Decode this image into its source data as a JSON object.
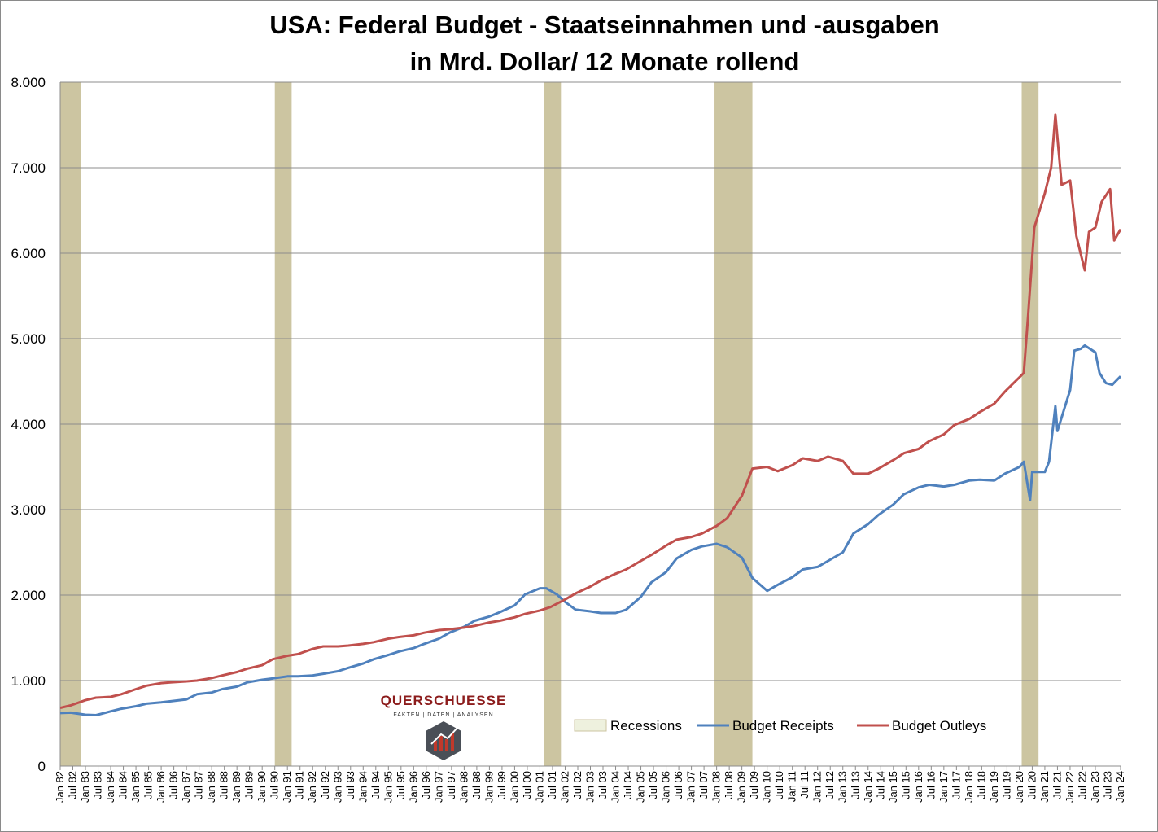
{
  "chart_data": {
    "type": "line",
    "title": "USA: Federal Budget - Staatseinnahmen und -ausgaben",
    "subtitle": "in Mrd. Dollar/ 12 Monate rollend",
    "xlabel": "",
    "ylabel": "",
    "ylim": [
      0,
      8000
    ],
    "xlim": [
      "1982-01",
      "2024-01"
    ],
    "grid": true,
    "legend_position": "bottom-right",
    "yticks": [
      {
        "value": 0,
        "label": "0"
      },
      {
        "value": 1000,
        "label": "1.000"
      },
      {
        "value": 2000,
        "label": "2.000"
      },
      {
        "value": 3000,
        "label": "3.000"
      },
      {
        "value": 4000,
        "label": "4.000"
      },
      {
        "value": 5000,
        "label": "5.000"
      },
      {
        "value": 6000,
        "label": "6.000"
      },
      {
        "value": 7000,
        "label": "7.000"
      },
      {
        "value": 8000,
        "label": "8.000"
      }
    ],
    "recessions": [
      {
        "start": "1982-01",
        "end": "1982-11"
      },
      {
        "start": "1990-07",
        "end": "1991-03"
      },
      {
        "start": "2001-03",
        "end": "2001-11"
      },
      {
        "start": "2007-12",
        "end": "2009-06"
      },
      {
        "start": "2020-02",
        "end": "2020-10"
      }
    ],
    "legend": [
      "Recessions",
      "Budget Receipts",
      "Budget Outleys"
    ],
    "series": [
      {
        "name": "Budget Receipts",
        "color": "#4f81bd",
        "points": [
          [
            "1982-01",
            620
          ],
          [
            "1982-06",
            625
          ],
          [
            "1983-01",
            600
          ],
          [
            "1983-06",
            595
          ],
          [
            "1984-01",
            640
          ],
          [
            "1984-06",
            670
          ],
          [
            "1985-01",
            700
          ],
          [
            "1985-06",
            730
          ],
          [
            "1986-01",
            745
          ],
          [
            "1986-06",
            760
          ],
          [
            "1987-01",
            780
          ],
          [
            "1987-06",
            840
          ],
          [
            "1988-01",
            860
          ],
          [
            "1988-06",
            900
          ],
          [
            "1989-01",
            930
          ],
          [
            "1989-06",
            980
          ],
          [
            "1990-01",
            1010
          ],
          [
            "1990-06",
            1025
          ],
          [
            "1991-01",
            1050
          ],
          [
            "1991-06",
            1050
          ],
          [
            "1992-01",
            1060
          ],
          [
            "1992-06",
            1080
          ],
          [
            "1993-01",
            1110
          ],
          [
            "1993-06",
            1150
          ],
          [
            "1994-01",
            1200
          ],
          [
            "1994-06",
            1250
          ],
          [
            "1995-01",
            1300
          ],
          [
            "1995-06",
            1340
          ],
          [
            "1996-01",
            1380
          ],
          [
            "1996-06",
            1430
          ],
          [
            "1997-01",
            1490
          ],
          [
            "1997-06",
            1560
          ],
          [
            "1998-01",
            1630
          ],
          [
            "1998-06",
            1700
          ],
          [
            "1999-01",
            1750
          ],
          [
            "1999-06",
            1800
          ],
          [
            "2000-01",
            1880
          ],
          [
            "2000-06",
            2010
          ],
          [
            "2001-01",
            2080
          ],
          [
            "2001-04",
            2080
          ],
          [
            "2001-09",
            2010
          ],
          [
            "2002-01",
            1920
          ],
          [
            "2002-06",
            1830
          ],
          [
            "2003-01",
            1810
          ],
          [
            "2003-06",
            1790
          ],
          [
            "2004-01",
            1790
          ],
          [
            "2004-06",
            1830
          ],
          [
            "2005-01",
            1980
          ],
          [
            "2005-06",
            2150
          ],
          [
            "2006-01",
            2270
          ],
          [
            "2006-06",
            2430
          ],
          [
            "2007-01",
            2530
          ],
          [
            "2007-06",
            2570
          ],
          [
            "2008-01",
            2600
          ],
          [
            "2008-06",
            2560
          ],
          [
            "2009-01",
            2440
          ],
          [
            "2009-06",
            2200
          ],
          [
            "2010-01",
            2050
          ],
          [
            "2010-06",
            2120
          ],
          [
            "2011-01",
            2210
          ],
          [
            "2011-06",
            2300
          ],
          [
            "2012-01",
            2330
          ],
          [
            "2012-06",
            2400
          ],
          [
            "2013-01",
            2500
          ],
          [
            "2013-06",
            2720
          ],
          [
            "2014-01",
            2830
          ],
          [
            "2014-06",
            2940
          ],
          [
            "2015-01",
            3060
          ],
          [
            "2015-06",
            3180
          ],
          [
            "2016-01",
            3260
          ],
          [
            "2016-06",
            3290
          ],
          [
            "2017-01",
            3270
          ],
          [
            "2017-06",
            3290
          ],
          [
            "2018-01",
            3340
          ],
          [
            "2018-06",
            3350
          ],
          [
            "2019-01",
            3340
          ],
          [
            "2019-06",
            3420
          ],
          [
            "2020-01",
            3500
          ],
          [
            "2020-03",
            3560
          ],
          [
            "2020-06",
            3110
          ],
          [
            "2020-07",
            3440
          ],
          [
            "2021-01",
            3440
          ],
          [
            "2021-03",
            3560
          ],
          [
            "2021-06",
            4210
          ],
          [
            "2021-07",
            3920
          ],
          [
            "2022-01",
            4400
          ],
          [
            "2022-03",
            4860
          ],
          [
            "2022-06",
            4880
          ],
          [
            "2022-08",
            4920
          ],
          [
            "2023-01",
            4840
          ],
          [
            "2023-03",
            4600
          ],
          [
            "2023-06",
            4480
          ],
          [
            "2023-09",
            4460
          ],
          [
            "2024-01",
            4560
          ]
        ]
      },
      {
        "name": "Budget Outleys",
        "color": "#c0504d",
        "points": [
          [
            "1982-01",
            680
          ],
          [
            "1982-06",
            710
          ],
          [
            "1983-01",
            770
          ],
          [
            "1983-06",
            800
          ],
          [
            "1984-01",
            810
          ],
          [
            "1984-06",
            840
          ],
          [
            "1985-01",
            900
          ],
          [
            "1985-06",
            940
          ],
          [
            "1986-01",
            970
          ],
          [
            "1986-06",
            980
          ],
          [
            "1987-01",
            990
          ],
          [
            "1987-06",
            1000
          ],
          [
            "1988-01",
            1030
          ],
          [
            "1988-06",
            1060
          ],
          [
            "1989-01",
            1100
          ],
          [
            "1989-06",
            1140
          ],
          [
            "1990-01",
            1180
          ],
          [
            "1990-06",
            1250
          ],
          [
            "1991-01",
            1290
          ],
          [
            "1991-06",
            1310
          ],
          [
            "1992-01",
            1370
          ],
          [
            "1992-06",
            1400
          ],
          [
            "1993-01",
            1400
          ],
          [
            "1993-06",
            1410
          ],
          [
            "1994-01",
            1430
          ],
          [
            "1994-06",
            1450
          ],
          [
            "1995-01",
            1490
          ],
          [
            "1995-06",
            1510
          ],
          [
            "1996-01",
            1530
          ],
          [
            "1996-06",
            1560
          ],
          [
            "1997-01",
            1590
          ],
          [
            "1997-06",
            1600
          ],
          [
            "1998-01",
            1620
          ],
          [
            "1998-06",
            1640
          ],
          [
            "1999-01",
            1680
          ],
          [
            "1999-06",
            1700
          ],
          [
            "2000-01",
            1740
          ],
          [
            "2000-06",
            1780
          ],
          [
            "2001-01",
            1820
          ],
          [
            "2001-06",
            1860
          ],
          [
            "2002-01",
            1950
          ],
          [
            "2002-06",
            2020
          ],
          [
            "2003-01",
            2100
          ],
          [
            "2003-06",
            2170
          ],
          [
            "2004-01",
            2250
          ],
          [
            "2004-06",
            2300
          ],
          [
            "2005-01",
            2400
          ],
          [
            "2005-06",
            2470
          ],
          [
            "2006-01",
            2580
          ],
          [
            "2006-06",
            2650
          ],
          [
            "2007-01",
            2680
          ],
          [
            "2007-06",
            2720
          ],
          [
            "2008-01",
            2810
          ],
          [
            "2008-06",
            2900
          ],
          [
            "2009-01",
            3160
          ],
          [
            "2009-06",
            3480
          ],
          [
            "2010-01",
            3500
          ],
          [
            "2010-06",
            3450
          ],
          [
            "2011-01",
            3520
          ],
          [
            "2011-06",
            3600
          ],
          [
            "2012-01",
            3570
          ],
          [
            "2012-06",
            3620
          ],
          [
            "2013-01",
            3570
          ],
          [
            "2013-06",
            3420
          ],
          [
            "2014-01",
            3420
          ],
          [
            "2014-06",
            3480
          ],
          [
            "2015-01",
            3580
          ],
          [
            "2015-06",
            3660
          ],
          [
            "2016-01",
            3710
          ],
          [
            "2016-06",
            3800
          ],
          [
            "2017-01",
            3880
          ],
          [
            "2017-06",
            3990
          ],
          [
            "2018-01",
            4060
          ],
          [
            "2018-06",
            4140
          ],
          [
            "2019-01",
            4240
          ],
          [
            "2019-06",
            4380
          ],
          [
            "2020-01",
            4550
          ],
          [
            "2020-03",
            4600
          ],
          [
            "2020-05",
            5250
          ],
          [
            "2020-08",
            6300
          ],
          [
            "2021-01",
            6700
          ],
          [
            "2021-04",
            7000
          ],
          [
            "2021-06",
            7620
          ],
          [
            "2021-09",
            6800
          ],
          [
            "2022-01",
            6850
          ],
          [
            "2022-04",
            6200
          ],
          [
            "2022-08",
            5800
          ],
          [
            "2022-10",
            6250
          ],
          [
            "2023-01",
            6300
          ],
          [
            "2023-04",
            6600
          ],
          [
            "2023-08",
            6750
          ],
          [
            "2023-10",
            6150
          ],
          [
            "2024-01",
            6280
          ]
        ]
      }
    ]
  },
  "colors": {
    "receipts": "#4f81bd",
    "outleys": "#c0504d",
    "recession": "#ccc5a1",
    "grid": "#8c8c8c"
  },
  "logo": {
    "name": "QUERSCHUESSE",
    "tagline": "FAKTEN | DATEN | ANALYSEN",
    "icon": "bar-chart-hexagon-icon"
  }
}
